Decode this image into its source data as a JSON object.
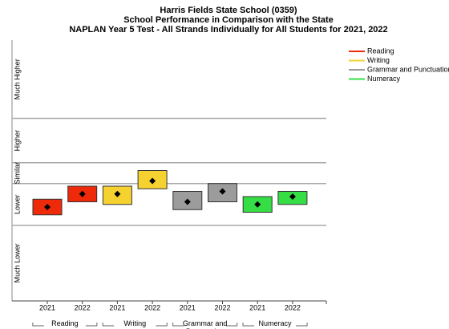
{
  "chart_data": {
    "type": "range",
    "title": "Harris Fields State School (0359)",
    "subtitle": "School Performance in Comparison with the State",
    "subtitle2": "NAPLAN Year 5 Test - All Strands Individually for All Students for 2021, 2022",
    "ylim": [
      0,
      100
    ],
    "yticks": [
      29,
      45,
      53,
      70
    ],
    "y_categories": [
      "Much Lower",
      "Lower",
      "Similar",
      "Higher",
      "Much Higher"
    ],
    "series": [
      {
        "name": "Reading",
        "color": "#ee2a0a",
        "x": [
          "2021",
          "2022"
        ],
        "values": [
          36,
          41
        ],
        "lows": [
          33,
          38
        ],
        "highs": [
          39,
          44
        ]
      },
      {
        "name": "Writing",
        "color": "#f6d230",
        "x": [
          "2021",
          "2022"
        ],
        "values": [
          41,
          46
        ],
        "lows": [
          37,
          43
        ],
        "highs": [
          44,
          50
        ]
      },
      {
        "name": "Grammar and Punctuation",
        "color": "#9c9c9c",
        "x": [
          "2021",
          "2022"
        ],
        "values": [
          38,
          42
        ],
        "lows": [
          35,
          38
        ],
        "highs": [
          42,
          45
        ]
      },
      {
        "name": "Numeracy",
        "color": "#35de45",
        "x": [
          "2021",
          "2022"
        ],
        "values": [
          37,
          40
        ],
        "lows": [
          34,
          37
        ],
        "highs": [
          40,
          42
        ]
      }
    ]
  }
}
